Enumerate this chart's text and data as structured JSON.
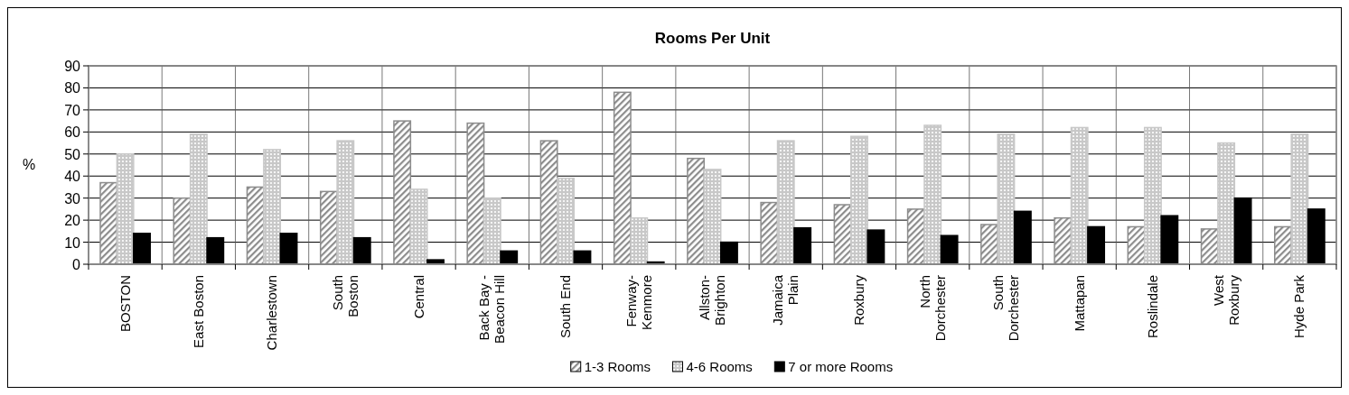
{
  "chart_data": {
    "type": "bar",
    "title": "Rooms Per Unit",
    "ylabel": "%",
    "categories": [
      "BOSTON",
      "East Boston",
      "Charlestown",
      "South\nBoston",
      "Central",
      "Back Bay -\nBeacon Hill",
      "South End",
      "Fenway-\nKenmore",
      "Allston-\nBrighton",
      "Jamaica\nPlain",
      "Roxbury",
      "North\nDorchester",
      "South\nDorchester",
      "Mattapan",
      "Roslindale",
      "West\nRoxbury",
      "Hyde Park"
    ],
    "series": [
      {
        "name": "1-3 Rooms",
        "color": "#8c8c8c",
        "values": [
          37,
          30,
          35,
          33,
          65,
          64,
          56,
          78,
          48,
          28,
          27,
          25,
          18,
          21,
          17,
          16,
          17
        ]
      },
      {
        "name": "4-6 Rooms",
        "color": "#c8c8c8",
        "values": [
          50,
          59,
          52,
          56,
          34,
          30,
          39,
          21,
          43,
          56,
          58,
          63,
          59,
          62,
          62,
          55,
          59
        ]
      },
      {
        "name": "7 or more Rooms",
        "color": "#000000",
        "values": [
          14,
          12,
          14,
          12,
          2,
          6,
          6,
          1,
          10,
          16.5,
          15.5,
          13,
          24,
          17,
          22,
          30,
          25
        ]
      }
    ],
    "ylim": [
      0,
      90
    ],
    "yticks": [
      0,
      10,
      20,
      30,
      40,
      50,
      60,
      70,
      80,
      90
    ],
    "grid": true,
    "legend": "bottom"
  }
}
